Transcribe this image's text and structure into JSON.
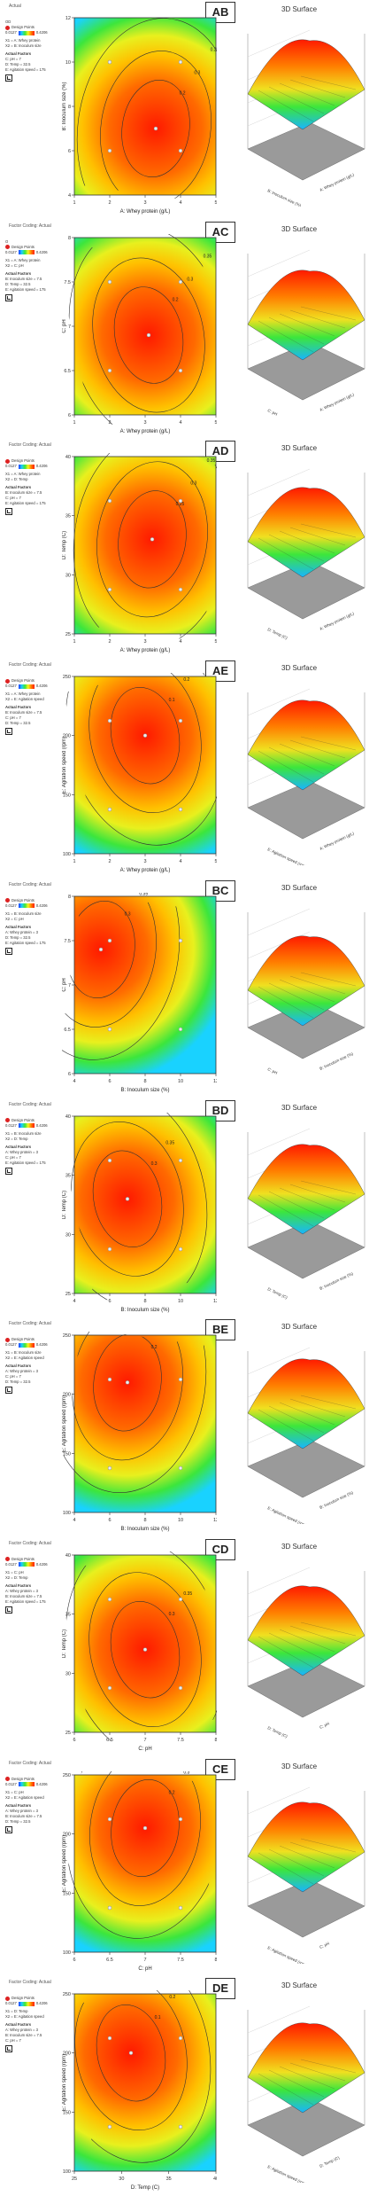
{
  "panels": [
    {
      "id": "AB",
      "factor_title": "Actual",
      "title": "OD",
      "surface_title": "3D Surface",
      "design_points": "Design Points",
      "scale_low": "0.0127",
      "scale_high": "0.4206",
      "x_label": "A: Whey protein (g/L)",
      "y_label": "B: Inoculum size (%)",
      "lines": [
        "X1 = A: Whey protein",
        "X2 = B: Inoculum size"
      ],
      "actual_factors": "Actual Factors",
      "factors": [
        "C: pH = 7",
        "D: Temp = 32.5",
        "E: Agitation speed = 175"
      ],
      "x_ticks": [
        "1",
        "2",
        "3",
        "4",
        "5"
      ],
      "y_ticks": [
        "4",
        "6",
        "8",
        "10",
        "12"
      ],
      "surface_x": "A: Whey protein (g/L)",
      "surface_y": "B: Inoculum size (%)",
      "contour_labels": [
        "0.2",
        "0.3",
        "0.35"
      ]
    },
    {
      "id": "AC",
      "factor_title": "Factor Coding: Actual",
      "title": "O",
      "surface_title": "3D Surface",
      "design_points": "Design Points",
      "scale_low": "0.0127",
      "scale_high": "0.4206",
      "x_label": "A: Whey protein (g/L)",
      "y_label": "C: pH",
      "lines": [
        "X1 = A: Whey protein",
        "X2 = C: pH"
      ],
      "actual_factors": "Actual Factors",
      "factors": [
        "B: Inoculum size = 7.5",
        "D: Temp = 32.5",
        "E: Agitation speed = 175"
      ],
      "x_ticks": [
        "1",
        "2",
        "3",
        "4",
        "5"
      ],
      "y_ticks": [
        "6",
        "6.5",
        "7",
        "7.5",
        "8"
      ],
      "surface_x": "A: Whey protein (g/L)",
      "surface_y": "C: pH",
      "contour_labels": [
        "0.2",
        "0.3",
        "0.35"
      ]
    },
    {
      "id": "AD",
      "factor_title": "Factor Coding: Actual",
      "title": "",
      "surface_title": "3D Surface",
      "design_points": "Design Points",
      "scale_low": "0.0127",
      "scale_high": "0.4206",
      "x_label": "A: Whey protein (g/L)",
      "y_label": "D: Temp (C)",
      "lines": [
        "X1 = A: Whey protein",
        "X2 = D: Temp"
      ],
      "actual_factors": "Actual Factors",
      "factors": [
        "B: Inoculum size = 7.5",
        "C: pH = 7",
        "E: Agitation speed = 175"
      ],
      "x_ticks": [
        "1",
        "2",
        "3",
        "4",
        "5"
      ],
      "y_ticks": [
        "25",
        "30",
        "35",
        "40"
      ],
      "surface_x": "A: Whey protein (g/L)",
      "surface_y": "D: Temp (C)",
      "contour_labels": [
        "0.25",
        "0.3",
        "0.35"
      ]
    },
    {
      "id": "AE",
      "factor_title": "Factor Coding: Actual",
      "title": "",
      "surface_title": "3D Surface",
      "design_points": "Design Points",
      "scale_low": "0.0127",
      "scale_high": "0.4206",
      "x_label": "A: Whey protein (g/L)",
      "y_label": "E: Agitation speed (rpm)",
      "lines": [
        "X1 = A: Whey protein",
        "X2 = E: Agitation speed"
      ],
      "actual_factors": "Actual Factors",
      "factors": [
        "B: Inoculum size = 7.5",
        "C: pH = 7",
        "D: Temp = 32.5"
      ],
      "x_ticks": [
        "1",
        "2",
        "3",
        "4",
        "5"
      ],
      "y_ticks": [
        "100",
        "150",
        "200",
        "250"
      ],
      "surface_x": "A: Whey protein (g/L)",
      "surface_y": "E: Agitation speed (rpm)",
      "contour_labels": [
        "0.1",
        "0.2",
        "0.3"
      ]
    },
    {
      "id": "BC",
      "factor_title": "Factor Coding: Actual",
      "title": "",
      "surface_title": "3D Surface",
      "design_points": "Design Points",
      "scale_low": "0.0127",
      "scale_high": "0.4206",
      "x_label": "B: Inoculum size (%)",
      "y_label": "C: pH",
      "lines": [
        "X1 = B: Inoculum size",
        "X2 = C: pH"
      ],
      "actual_factors": "Actual Factors",
      "factors": [
        "A: Whey protein = 3",
        "D: Temp = 32.5",
        "E: Agitation speed = 175"
      ],
      "x_ticks": [
        "4",
        "6",
        "8",
        "10",
        "12"
      ],
      "y_ticks": [
        "6",
        "6.5",
        "7",
        "7.5",
        "8"
      ],
      "surface_x": "B: Inoculum size (%)",
      "surface_y": "C: pH",
      "contour_labels": [
        "0.3",
        "0.35"
      ]
    },
    {
      "id": "BD",
      "factor_title": "Factor Coding: Actual",
      "title": "",
      "surface_title": "3D Surface",
      "design_points": "Design Points",
      "scale_low": "0.0127",
      "scale_high": "0.4206",
      "x_label": "B: Inoculum size (%)",
      "y_label": "D: Temp (C)",
      "lines": [
        "X1 = B: Inoculum size",
        "X2 = D: Temp"
      ],
      "actual_factors": "Actual Factors",
      "factors": [
        "A: Whey protein = 3",
        "C: pH = 7",
        "E: Agitation speed = 175"
      ],
      "x_ticks": [
        "4",
        "6",
        "8",
        "10",
        "12"
      ],
      "y_ticks": [
        "25",
        "30",
        "35",
        "40"
      ],
      "surface_x": "B: Inoculum size (%)",
      "surface_y": "D: Temp (C)",
      "contour_labels": [
        "0.3",
        "0.35"
      ]
    },
    {
      "id": "BE",
      "factor_title": "Factor Coding: Actual",
      "title": "",
      "surface_title": "3D Surface",
      "design_points": "Design Points",
      "scale_low": "0.0127",
      "scale_high": "0.4206",
      "x_label": "B: Inoculum size (%)",
      "y_label": "E: Agitation speed (rpm)",
      "lines": [
        "X1 = B: Inoculum size",
        "X2 = E: Agitation speed"
      ],
      "actual_factors": "Actual Factors",
      "factors": [
        "A: Whey protein = 3",
        "C: pH = 7",
        "D: Temp = 32.5"
      ],
      "x_ticks": [
        "4",
        "6",
        "8",
        "10",
        "12"
      ],
      "y_ticks": [
        "100",
        "150",
        "200",
        "250"
      ],
      "surface_x": "B: Inoculum size (%)",
      "surface_y": "E: Agitation speed (rpm)",
      "contour_labels": [
        "0.2",
        "0.3",
        "0.35"
      ]
    },
    {
      "id": "CD",
      "factor_title": "Factor Coding: Actual",
      "title": "",
      "surface_title": "3D Surface",
      "design_points": "Design Points",
      "scale_low": "0.0127",
      "scale_high": "0.4206",
      "x_label": "C: pH",
      "y_label": "D: Temp (C)",
      "lines": [
        "X1 = C: pH",
        "X2 = D: Temp"
      ],
      "actual_factors": "Actual Factors",
      "factors": [
        "A: Whey protein = 3",
        "B: Inoculum size = 7.5",
        "E: Agitation speed = 175"
      ],
      "x_ticks": [
        "6",
        "6.5",
        "7",
        "7.5",
        "8"
      ],
      "y_ticks": [
        "25",
        "30",
        "35",
        "40"
      ],
      "surface_x": "C: pH",
      "surface_y": "D: Temp (C)",
      "contour_labels": [
        "0.3",
        "0.35"
      ]
    },
    {
      "id": "CE",
      "factor_title": "Factor Coding: Actual",
      "title": "",
      "surface_title": "3D Surface",
      "design_points": "Design Points",
      "scale_low": "0.0127",
      "scale_high": "0.4206",
      "x_label": "C: pH",
      "y_label": "E: Agitation speed (rpm)",
      "lines": [
        "X1 = C: pH",
        "X2 = E: Agitation speed"
      ],
      "actual_factors": "Actual Factors",
      "factors": [
        "A: Whey protein = 3",
        "B: Inoculum size = 7.5",
        "D: Temp = 32.5"
      ],
      "x_ticks": [
        "6",
        "6.5",
        "7",
        "7.5",
        "8"
      ],
      "y_ticks": [
        "100",
        "150",
        "200",
        "250"
      ],
      "surface_x": "C: pH",
      "surface_y": "E: Agitation speed (rpm)",
      "contour_labels": [
        "0.2",
        "0.3",
        "0.35"
      ]
    },
    {
      "id": "DE",
      "factor_title": "Factor Coding: Actual",
      "title": "",
      "surface_title": "3D Surface",
      "design_points": "Design Points",
      "scale_low": "0.0127",
      "scale_high": "0.4206",
      "x_label": "D: Temp (C)",
      "y_label": "E: Agitation speed (rpm)",
      "lines": [
        "X1 = D: Temp",
        "X2 = E: Agitation speed"
      ],
      "actual_factors": "Actual Factors",
      "factors": [
        "A: Whey protein = 3",
        "B: Inoculum size = 7.5",
        "C: pH = 7"
      ],
      "x_ticks": [
        "25",
        "30",
        "35",
        "40"
      ],
      "y_ticks": [
        "100",
        "150",
        "200",
        "250"
      ],
      "surface_x": "D: Temp (C)",
      "surface_y": "E: Agitation speed (rpm)",
      "contour_labels": [
        "0.1",
        "0.2",
        "0.3"
      ]
    }
  ],
  "chart_data": {
    "type": "heatmap",
    "response": "OD",
    "response_range": [
      0.0127,
      0.4206
    ],
    "plots": [
      {
        "pair": "AB",
        "x": "A: Whey protein (g/L)",
        "y": "B: Inoculum size (%)",
        "xlim": [
          1,
          5
        ],
        "ylim": [
          4,
          12
        ],
        "optimum": [
          3.3,
          7.0
        ]
      },
      {
        "pair": "AC",
        "x": "A: Whey protein (g/L)",
        "y": "C: pH",
        "xlim": [
          1,
          5
        ],
        "ylim": [
          6,
          8
        ],
        "optimum": [
          3.1,
          6.9
        ]
      },
      {
        "pair": "AD",
        "x": "A: Whey protein (g/L)",
        "y": "D: Temp (C)",
        "xlim": [
          1,
          5
        ],
        "ylim": [
          25,
          40
        ],
        "optimum": [
          3.2,
          33
        ]
      },
      {
        "pair": "AE",
        "x": "A: Whey protein (g/L)",
        "y": "E: Agitation speed (rpm)",
        "xlim": [
          1,
          5
        ],
        "ylim": [
          100,
          250
        ],
        "optimum": [
          3.0,
          200
        ]
      },
      {
        "pair": "BC",
        "x": "B: Inoculum size (%)",
        "y": "C: pH",
        "xlim": [
          4,
          12
        ],
        "ylim": [
          6,
          8
        ],
        "optimum": [
          5.5,
          7.4
        ]
      },
      {
        "pair": "BD",
        "x": "B: Inoculum size (%)",
        "y": "D: Temp (C)",
        "xlim": [
          4,
          12
        ],
        "ylim": [
          25,
          40
        ],
        "optimum": [
          7.0,
          33
        ]
      },
      {
        "pair": "BE",
        "x": "B: Inoculum size (%)",
        "y": "E: Agitation speed (rpm)",
        "xlim": [
          4,
          12
        ],
        "ylim": [
          100,
          250
        ],
        "optimum": [
          7.0,
          210
        ]
      },
      {
        "pair": "CD",
        "x": "C: pH",
        "y": "D: Temp (C)",
        "xlim": [
          6,
          8
        ],
        "ylim": [
          25,
          40
        ],
        "optimum": [
          7.0,
          32
        ]
      },
      {
        "pair": "CE",
        "x": "C: pH",
        "y": "E: Agitation speed (rpm)",
        "xlim": [
          6,
          8
        ],
        "ylim": [
          100,
          250
        ],
        "optimum": [
          7.0,
          205
        ]
      },
      {
        "pair": "DE",
        "x": "D: Temp (C)",
        "y": "E: Agitation speed (rpm)",
        "xlim": [
          25,
          40
        ],
        "ylim": [
          100,
          250
        ],
        "optimum": [
          31,
          200
        ]
      }
    ]
  }
}
